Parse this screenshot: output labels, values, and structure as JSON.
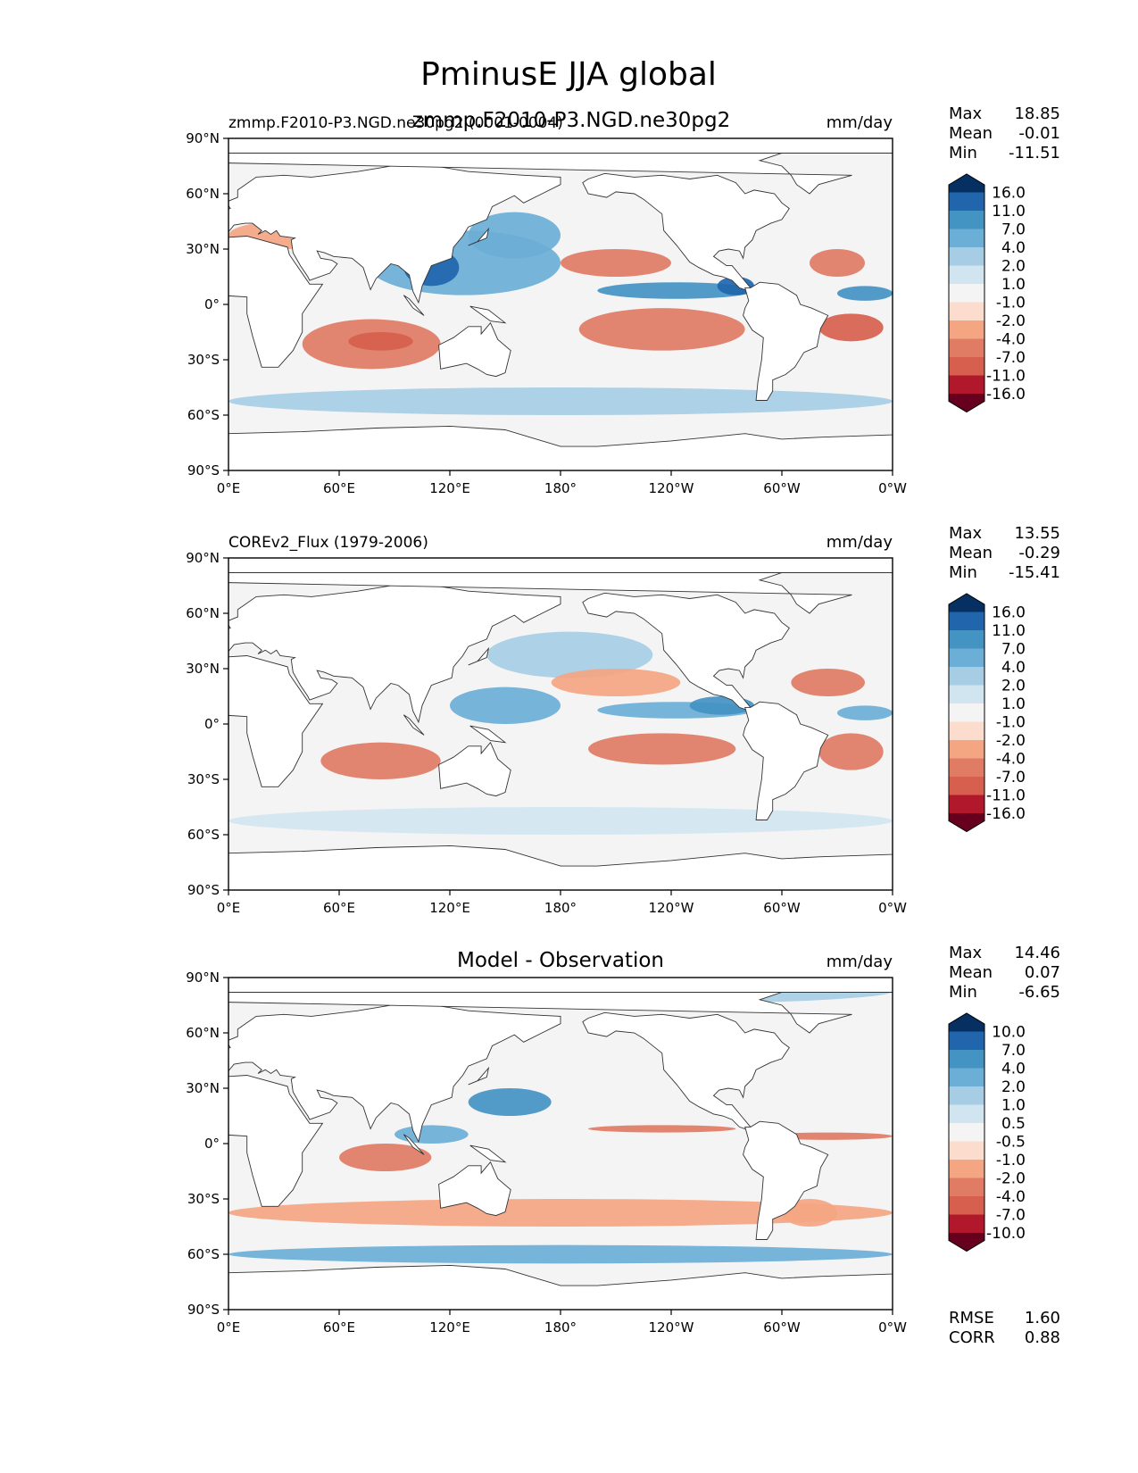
{
  "figure": {
    "title": "PminusE JJA global",
    "subtitle": "zmmp.F2010-P3.NGD.ne30pg2"
  },
  "colors": {
    "land": "#ffffff",
    "coast": "#333333",
    "ocean_neutral": "#f4f4f4"
  },
  "chart_data": [
    {
      "type": "heatmap",
      "name": "model",
      "left_title": "zmmp.F2010-P3.NGD.ne30pg2 (0001-0004)",
      "units": "mm/day",
      "stats": {
        "max_label": "Max",
        "max": "18.85",
        "mean_label": "Mean",
        "mean": "-0.01",
        "min_label": "Min",
        "min": "-11.51"
      },
      "colorbar_levels": [
        "16.0",
        "11.0",
        "7.0",
        "4.0",
        "2.0",
        "1.0",
        "-1.0",
        "-2.0",
        "-4.0",
        "-7.0",
        "-11.0",
        "-16.0"
      ],
      "colorbar_colors": [
        "#053061",
        "#2166ac",
        "#4393c3",
        "#6baed6",
        "#a6cde4",
        "#d1e5f0",
        "#f4f4f4",
        "#fbdccd",
        "#f4a582",
        "#e07b64",
        "#d6604d",
        "#b2182b",
        "#67001f"
      ],
      "x_ticks": [
        "0°E",
        "60°E",
        "120°E",
        "180°",
        "120°W",
        "60°W",
        "0°W"
      ],
      "y_ticks": [
        "90°N",
        "60°N",
        "30°N",
        "0°",
        "30°S",
        "60°S",
        "90°S"
      ],
      "xlim": [
        0,
        360
      ],
      "ylim": [
        -90,
        90
      ],
      "regions": [
        {
          "lon": [
            75,
            180
          ],
          "lat": [
            5,
            40
          ],
          "value": 6.0
        },
        {
          "lon": [
            95,
            125
          ],
          "lat": [
            10,
            30
          ],
          "value": 12.0
        },
        {
          "lon": [
            130,
            180
          ],
          "lat": [
            25,
            50
          ],
          "value": 4.0
        },
        {
          "lon": [
            200,
            285
          ],
          "lat": [
            3,
            12
          ],
          "value": 7.0
        },
        {
          "lon": [
            265,
            285
          ],
          "lat": [
            5,
            15
          ],
          "value": 13.0
        },
        {
          "lon": [
            330,
            360
          ],
          "lat": [
            2,
            10
          ],
          "value": 8.0
        },
        {
          "lon": [
            40,
            115
          ],
          "lat": [
            -35,
            -8
          ],
          "value": -6.0
        },
        {
          "lon": [
            65,
            100
          ],
          "lat": [
            -25,
            -15
          ],
          "value": -9.0
        },
        {
          "lon": [
            190,
            280
          ],
          "lat": [
            -25,
            -2
          ],
          "value": -6.0
        },
        {
          "lon": [
            320,
            355
          ],
          "lat": [
            -20,
            -5
          ],
          "value": -8.0
        },
        {
          "lon": [
            180,
            240
          ],
          "lat": [
            15,
            30
          ],
          "value": -4.5
        },
        {
          "lon": [
            315,
            345
          ],
          "lat": [
            15,
            30
          ],
          "value": -5.0
        },
        {
          "lon": [
            0,
            360
          ],
          "lat": [
            -60,
            -45
          ],
          "value": 2.0
        },
        {
          "lon": [
            0,
            60
          ],
          "lat": [
            30,
            45
          ],
          "value": -2.5
        }
      ]
    },
    {
      "type": "heatmap",
      "name": "observation",
      "left_title": "COREv2_Flux (1979-2006)",
      "units": "mm/day",
      "stats": {
        "max_label": "Max",
        "max": "13.55",
        "mean_label": "Mean",
        "mean": "-0.29",
        "min_label": "Min",
        "min": "-15.41"
      },
      "colorbar_levels": [
        "16.0",
        "11.0",
        "7.0",
        "4.0",
        "2.0",
        "1.0",
        "-1.0",
        "-2.0",
        "-4.0",
        "-7.0",
        "-11.0",
        "-16.0"
      ],
      "colorbar_colors": [
        "#053061",
        "#2166ac",
        "#4393c3",
        "#6baed6",
        "#a6cde4",
        "#d1e5f0",
        "#f4f4f4",
        "#fbdccd",
        "#f4a582",
        "#e07b64",
        "#d6604d",
        "#b2182b",
        "#67001f"
      ],
      "x_ticks": [
        "0°E",
        "60°E",
        "120°E",
        "180°",
        "120°W",
        "60°W",
        "0°W"
      ],
      "y_ticks": [
        "90°N",
        "60°N",
        "30°N",
        "0°",
        "30°S",
        "60°S",
        "90°S"
      ],
      "xlim": [
        0,
        360
      ],
      "ylim": [
        -90,
        90
      ],
      "regions": [
        {
          "lon": [
            120,
            180
          ],
          "lat": [
            0,
            20
          ],
          "value": 4.5
        },
        {
          "lon": [
            140,
            230
          ],
          "lat": [
            25,
            50
          ],
          "value": 3.0
        },
        {
          "lon": [
            200,
            285
          ],
          "lat": [
            3,
            12
          ],
          "value": 6.0
        },
        {
          "lon": [
            250,
            285
          ],
          "lat": [
            5,
            15
          ],
          "value": 8.0
        },
        {
          "lon": [
            330,
            360
          ],
          "lat": [
            2,
            10
          ],
          "value": 5.0
        },
        {
          "lon": [
            50,
            115
          ],
          "lat": [
            -30,
            -10
          ],
          "value": -5.0
        },
        {
          "lon": [
            195,
            275
          ],
          "lat": [
            -22,
            -5
          ],
          "value": -5.0
        },
        {
          "lon": [
            320,
            355
          ],
          "lat": [
            -25,
            -5
          ],
          "value": -6.0
        },
        {
          "lon": [
            175,
            245
          ],
          "lat": [
            15,
            30
          ],
          "value": -4.0
        },
        {
          "lon": [
            305,
            345
          ],
          "lat": [
            15,
            30
          ],
          "value": -4.5
        },
        {
          "lon": [
            0,
            360
          ],
          "lat": [
            -60,
            -45
          ],
          "value": 1.5
        }
      ]
    },
    {
      "type": "heatmap",
      "name": "difference",
      "center_title": "Model - Observation",
      "units": "mm/day",
      "stats": {
        "max_label": "Max",
        "max": "14.46",
        "mean_label": "Mean",
        "mean": "0.07",
        "min_label": "Min",
        "min": "-6.65"
      },
      "colorbar_levels": [
        "10.0",
        "7.0",
        "4.0",
        "2.0",
        "1.0",
        "0.5",
        "-0.5",
        "-1.0",
        "-2.0",
        "-4.0",
        "-7.0",
        "-10.0"
      ],
      "colorbar_colors": [
        "#053061",
        "#2166ac",
        "#4393c3",
        "#6baed6",
        "#a6cde4",
        "#d1e5f0",
        "#f4f4f4",
        "#fbdccd",
        "#f4a582",
        "#e07b64",
        "#d6604d",
        "#b2182b",
        "#67001f"
      ],
      "metrics": {
        "rmse_label": "RMSE",
        "rmse": "1.60",
        "corr_label": "CORR",
        "corr": "0.88"
      },
      "x_ticks": [
        "0°E",
        "60°E",
        "120°E",
        "180°",
        "120°W",
        "60°W",
        "0°W"
      ],
      "y_ticks": [
        "90°N",
        "60°N",
        "30°N",
        "0°",
        "30°S",
        "60°S",
        "90°S"
      ],
      "xlim": [
        0,
        360
      ],
      "ylim": [
        -90,
        90
      ],
      "regions": [
        {
          "lon": [
            130,
            175
          ],
          "lat": [
            15,
            30
          ],
          "value": 5.0
        },
        {
          "lon": [
            60,
            110
          ],
          "lat": [
            -15,
            0
          ],
          "value": -2.5
        },
        {
          "lon": [
            0,
            360
          ],
          "lat": [
            -45,
            -30
          ],
          "value": -1.5
        },
        {
          "lon": [
            195,
            275
          ],
          "lat": [
            6,
            10
          ],
          "value": -2.5
        },
        {
          "lon": [
            290,
            360
          ],
          "lat": [
            2,
            6
          ],
          "value": -2.5
        },
        {
          "lon": [
            0,
            360
          ],
          "lat": [
            -65,
            -55
          ],
          "value": 2.5
        },
        {
          "lon": [
            0,
            360
          ],
          "lat": [
            75,
            90
          ],
          "value": 1.5
        },
        {
          "lon": [
            300,
            330
          ],
          "lat": [
            -45,
            -30
          ],
          "value": -2.0
        },
        {
          "lon": [
            90,
            130
          ],
          "lat": [
            0,
            10
          ],
          "value": 3.0
        }
      ]
    }
  ]
}
